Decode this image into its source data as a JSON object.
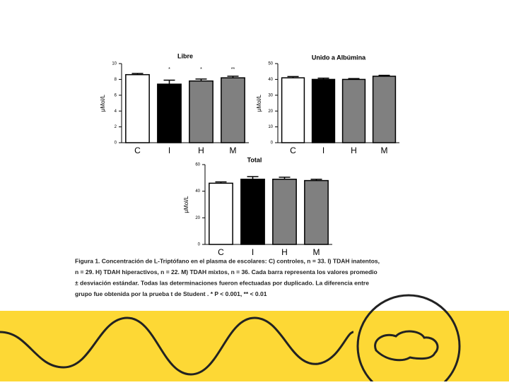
{
  "chart_data": [
    {
      "type": "bar",
      "title": "Libre",
      "y_label": "μMol/L",
      "categories": [
        "C",
        "I",
        "H",
        "M"
      ],
      "values": [
        8.6,
        7.4,
        7.8,
        8.2
      ],
      "errors": [
        0.15,
        0.5,
        0.25,
        0.2
      ],
      "annotations": [
        null,
        "*",
        "*",
        "**"
      ],
      "colors": [
        "#ffffff",
        "#000000",
        "#808080",
        "#808080"
      ],
      "ylim": [
        0,
        10
      ],
      "yticks": [
        0,
        2,
        4,
        6,
        8,
        10
      ]
    },
    {
      "type": "bar",
      "title": "Unido a Albúmina",
      "y_label": "μMol/L",
      "categories": [
        "C",
        "I",
        "H",
        "M"
      ],
      "values": [
        41,
        40,
        40,
        42
      ],
      "errors": [
        0.8,
        0.8,
        0.5,
        0.6
      ],
      "colors": [
        "#ffffff",
        "#000000",
        "#808080",
        "#808080"
      ],
      "ylim": [
        0,
        50
      ],
      "yticks": [
        0,
        10,
        20,
        30,
        40,
        50
      ]
    },
    {
      "type": "bar",
      "title": "Total",
      "y_label": "μMol/L",
      "categories": [
        "C",
        "I",
        "H",
        "M"
      ],
      "values": [
        46,
        49,
        49,
        48
      ],
      "errors": [
        1,
        2,
        1.5,
        1
      ],
      "colors": [
        "#ffffff",
        "#000000",
        "#808080",
        "#808080"
      ],
      "ylim": [
        0,
        60
      ],
      "yticks": [
        0,
        20,
        40,
        60
      ]
    }
  ],
  "caption": [
    "Figura 1. Concentración de L-Triptófano en el plasma de escolares: C) controles, n = 33. I) TDAH inatentos,",
    "n = 29. H) TDAH hiperactivos, n = 22. M) TDAH mixtos, n = 36. Cada barra representa los valores promedio",
    "± desviación estándar. Todas las determinaciones fueron efectuadas por duplicado. La diferencia entre",
    "grupo fue obtenida por la prueba t de Student . * P < 0.001, ** < 0.01"
  ]
}
